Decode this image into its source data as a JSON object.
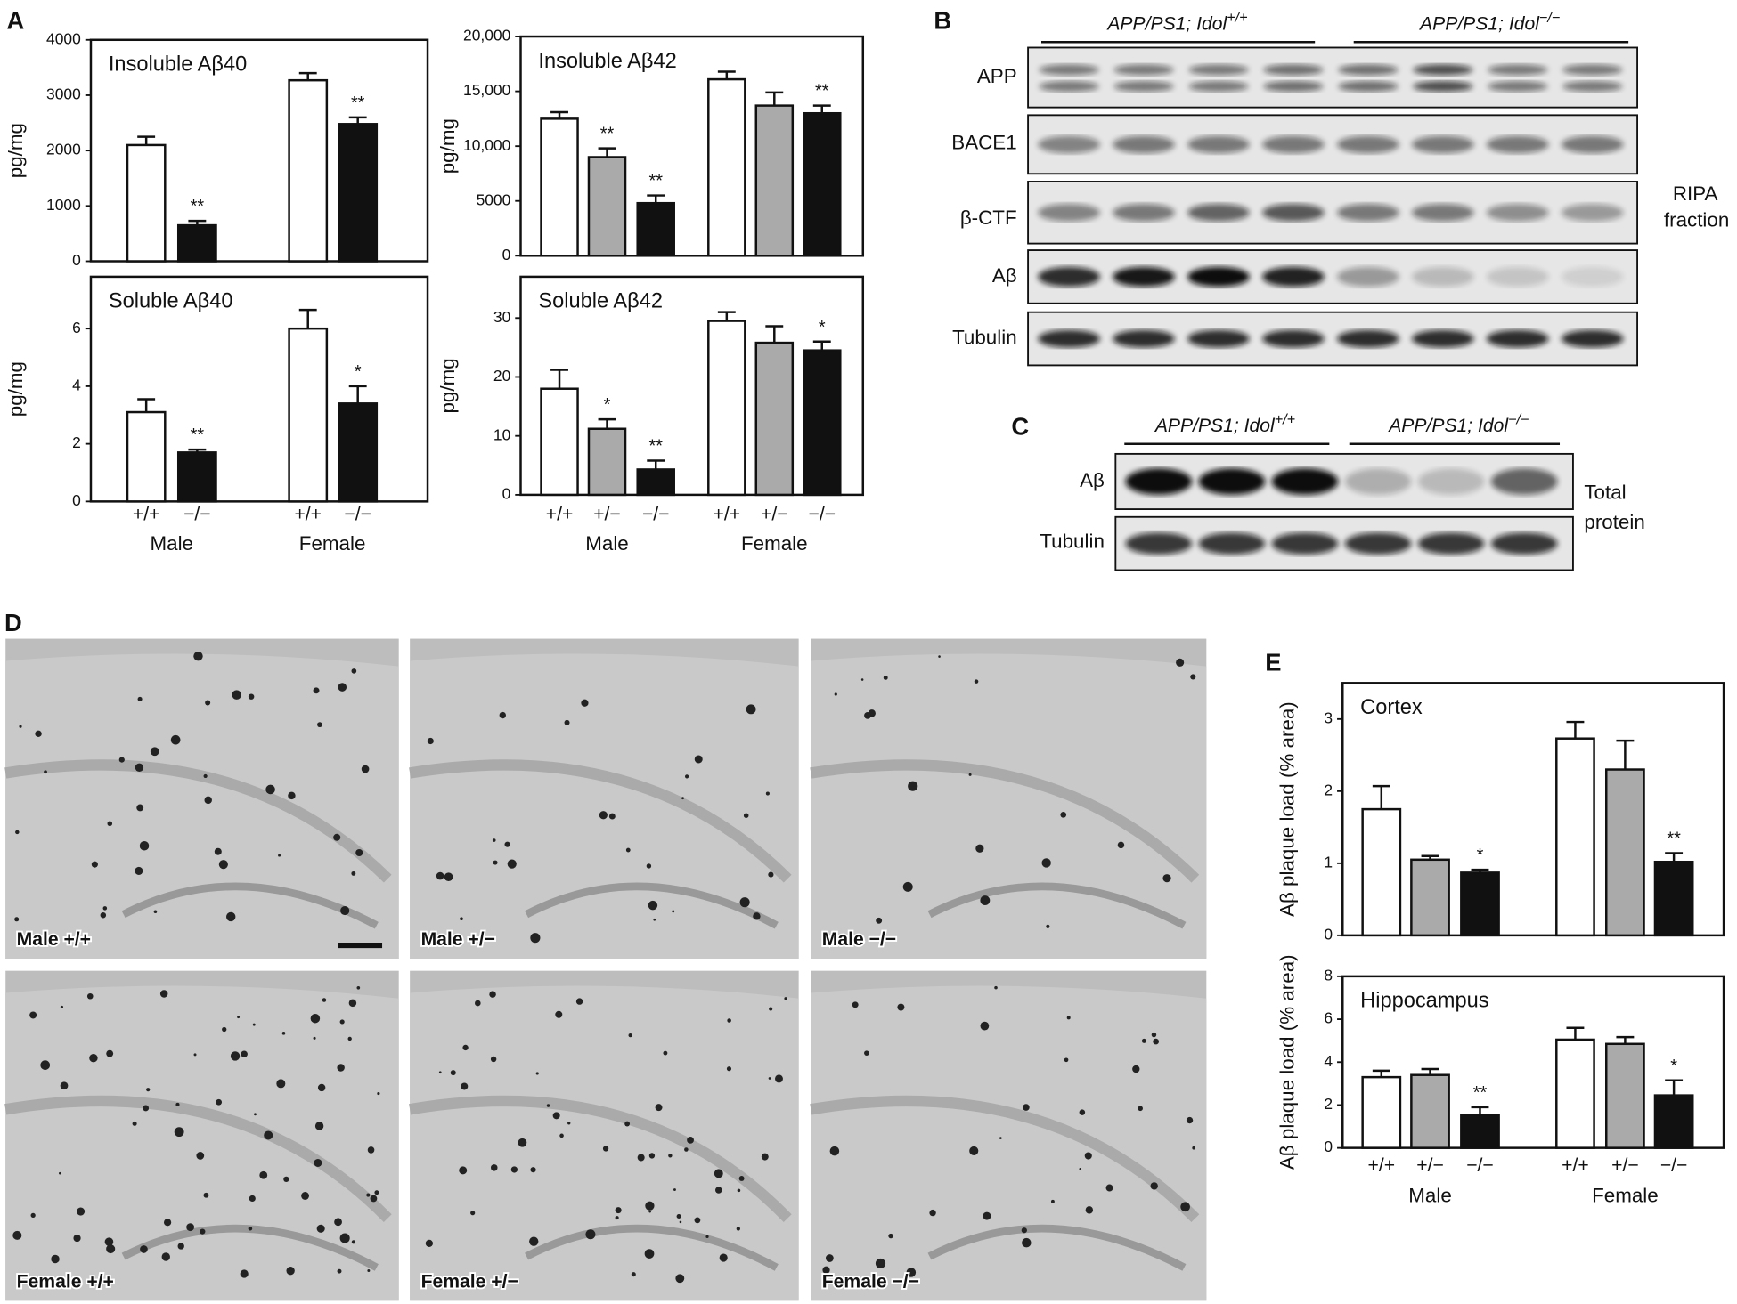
{
  "panel_labels": [
    "A",
    "B",
    "C",
    "D",
    "E"
  ],
  "chart_data": [
    {
      "type": "bar",
      "title": "Insoluble Aβ40",
      "ylabel": "pg/mg",
      "values": [
        2100,
        650,
        3270,
        2480
      ],
      "errors": [
        150,
        80,
        130,
        120
      ],
      "colors": [
        "#ffffff",
        "#111111",
        "#ffffff",
        "#111111"
      ],
      "annotations": [
        null,
        "**",
        null,
        "**"
      ],
      "ylim": [
        0,
        4000
      ],
      "yticks": [
        0,
        1000,
        2000,
        3000,
        4000
      ]
    },
    {
      "type": "bar",
      "title": "Soluble Aβ40",
      "ylabel": "pg/mg",
      "values": [
        3.1,
        1.7,
        6.0,
        3.4
      ],
      "errors": [
        0.45,
        0.1,
        0.65,
        0.6
      ],
      "colors": [
        "#ffffff",
        "#111111",
        "#ffffff",
        "#111111"
      ],
      "annotations": [
        null,
        "**",
        null,
        "*"
      ],
      "ylim": [
        0,
        7.8
      ],
      "yticks": [
        0,
        2,
        4,
        6
      ],
      "categories": [
        "+/+",
        "−/−",
        "+/+",
        "−/−"
      ],
      "groups": [
        "Male",
        "Female"
      ]
    },
    {
      "type": "bar",
      "title": "Insoluble Aβ42",
      "ylabel": "pg/mg",
      "values": [
        12500,
        9000,
        4800,
        16100,
        13700,
        13000
      ],
      "errors": [
        600,
        800,
        700,
        700,
        1200,
        700
      ],
      "colors": [
        "#ffffff",
        "#aaaaaa",
        "#111111",
        "#ffffff",
        "#aaaaaa",
        "#111111"
      ],
      "annotations": [
        null,
        "**",
        "**",
        null,
        null,
        "**"
      ],
      "ylim": [
        0,
        20000
      ],
      "yticks": [
        0,
        5000,
        {
          "value": 10000,
          "label": "10,000"
        },
        {
          "value": 15000,
          "label": "15,000"
        },
        {
          "value": 20000,
          "label": "20,000"
        }
      ]
    },
    {
      "type": "bar",
      "title": "Soluble Aβ42",
      "ylabel": "pg/mg",
      "values": [
        18,
        11.2,
        4.3,
        29.5,
        25.8,
        24.5
      ],
      "errors": [
        3.2,
        1.6,
        1.5,
        1.5,
        2.8,
        1.5
      ],
      "colors": [
        "#ffffff",
        "#aaaaaa",
        "#111111",
        "#ffffff",
        "#aaaaaa",
        "#111111"
      ],
      "annotations": [
        null,
        "*",
        "**",
        null,
        null,
        "*"
      ],
      "ylim": [
        0,
        37
      ],
      "yticks": [
        0,
        10,
        20,
        30
      ],
      "categories": [
        "+/+",
        "+/−",
        "−/−",
        "+/+",
        "+/−",
        "−/−"
      ],
      "groups": [
        "Male",
        "Female"
      ]
    },
    {
      "type": "bar",
      "title": "Cortex",
      "ylabel": "Aβ plaque load (% area)",
      "values": [
        1.75,
        1.05,
        0.87,
        2.73,
        2.3,
        1.02
      ],
      "errors": [
        0.32,
        0.05,
        0.04,
        0.23,
        0.4,
        0.12
      ],
      "colors": [
        "#ffffff",
        "#aaaaaa",
        "#111111",
        "#ffffff",
        "#aaaaaa",
        "#111111"
      ],
      "annotations": [
        null,
        null,
        "*",
        null,
        null,
        "**"
      ],
      "ylim": [
        0,
        3.5
      ],
      "yticks": [
        0,
        1,
        2,
        3
      ]
    },
    {
      "type": "bar",
      "title": "Hippocampus",
      "ylabel": "Aβ plaque load (% area)",
      "values": [
        3.3,
        3.4,
        1.55,
        5.05,
        4.85,
        2.45
      ],
      "errors": [
        0.3,
        0.28,
        0.35,
        0.55,
        0.32,
        0.7
      ],
      "colors": [
        "#ffffff",
        "#aaaaaa",
        "#111111",
        "#ffffff",
        "#aaaaaa",
        "#111111"
      ],
      "annotations": [
        null,
        null,
        "**",
        null,
        null,
        "*"
      ],
      "ylim": [
        0,
        8
      ],
      "yticks": [
        0,
        2,
        4,
        6,
        8
      ],
      "categories": [
        "+/+",
        "+/−",
        "−/−",
        "+/+",
        "+/−",
        "−/−"
      ],
      "groups": [
        "Male",
        "Female"
      ]
    }
  ],
  "blot_b": {
    "headers": [
      {
        "text": "APP/PS1; Idol",
        "sup": "+/+"
      },
      {
        "text": "APP/PS1; Idol",
        "sup": "−/−"
      }
    ],
    "rows": [
      "APP",
      "BACE1",
      "β-CTF",
      "Aβ",
      "Tubulin"
    ],
    "note": [
      "RIPA",
      "fraction"
    ]
  },
  "blot_c": {
    "headers": [
      {
        "text": "APP/PS1; Idol",
        "sup": "+/+"
      },
      {
        "text": "APP/PS1; Idol",
        "sup": "−/−"
      }
    ],
    "rows": [
      "Aβ",
      "Tubulin"
    ],
    "note": [
      "Total",
      "protein"
    ]
  },
  "micrographs": [
    "Male +/+",
    "Male +/−",
    "Male −/−",
    "Female +/+",
    "Female +/−",
    "Female −/−"
  ]
}
